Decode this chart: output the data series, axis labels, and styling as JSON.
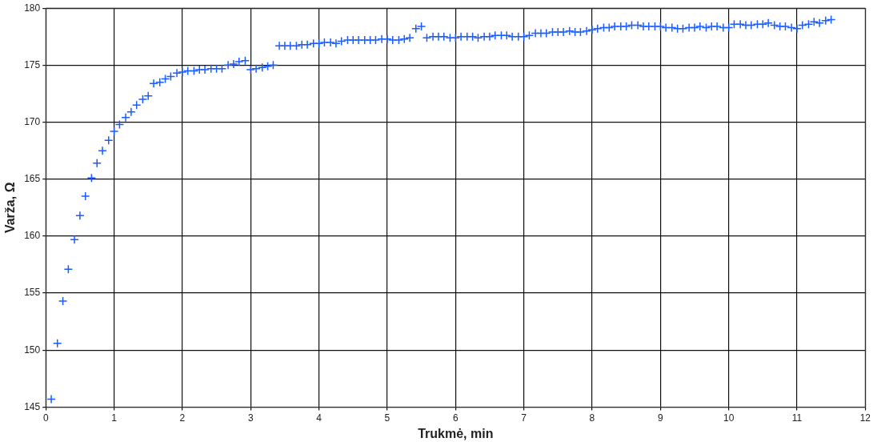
{
  "chart_data": {
    "type": "scatter",
    "xlabel": "Trukmė, min",
    "ylabel": "Varža, Ω",
    "xlim": [
      0,
      12
    ],
    "xticks": [
      0,
      1,
      2,
      3,
      4,
      5,
      6,
      7,
      8,
      9,
      10,
      11,
      12
    ],
    "ylim": [
      145,
      180
    ],
    "yticks": [
      145,
      150,
      155,
      160,
      165,
      170,
      175,
      180
    ],
    "grid": true,
    "marker": "cross",
    "legend": false,
    "series": [
      {
        "color": "#1a5cff",
        "x": [
          0.08,
          0.17,
          0.25,
          0.33,
          0.42,
          0.5,
          0.58,
          0.67,
          0.75,
          0.83,
          0.92,
          1.0,
          1.08,
          1.17,
          1.25,
          1.33,
          1.42,
          1.5,
          1.58,
          1.67,
          1.75,
          1.83,
          1.92,
          2.0,
          2.08,
          2.17,
          2.25,
          2.33,
          2.42,
          2.5,
          2.58,
          2.67,
          2.75,
          2.83,
          2.92,
          3.0,
          3.08,
          3.17,
          3.25,
          3.33,
          3.42,
          3.5,
          3.58,
          3.67,
          3.75,
          3.83,
          3.92,
          4.0,
          4.08,
          4.17,
          4.25,
          4.33,
          4.42,
          4.5,
          4.58,
          4.67,
          4.75,
          4.83,
          4.92,
          5.0,
          5.08,
          5.17,
          5.25,
          5.33,
          5.42,
          5.5,
          5.58,
          5.67,
          5.75,
          5.83,
          5.92,
          6.0,
          6.08,
          6.17,
          6.25,
          6.33,
          6.42,
          6.5,
          6.58,
          6.67,
          6.75,
          6.83,
          6.92,
          7.0,
          7.08,
          7.17,
          7.25,
          7.33,
          7.42,
          7.5,
          7.58,
          7.67,
          7.75,
          7.83,
          7.92,
          8.0,
          8.08,
          8.17,
          8.25,
          8.33,
          8.42,
          8.5,
          8.58,
          8.67,
          8.75,
          8.83,
          8.92,
          9.0,
          9.08,
          9.17,
          9.25,
          9.33,
          9.42,
          9.5,
          9.58,
          9.67,
          9.75,
          9.83,
          9.92,
          10.0,
          10.08,
          10.17,
          10.25,
          10.33,
          10.42,
          10.5,
          10.58,
          10.67,
          10.75,
          10.83,
          10.92,
          11.0,
          11.08,
          11.17,
          11.25,
          11.33,
          11.42,
          11.5
        ],
        "values": [
          145.7,
          150.6,
          154.3,
          157.1,
          159.7,
          161.8,
          163.5,
          165.1,
          166.4,
          167.5,
          168.4,
          169.2,
          169.8,
          170.4,
          170.9,
          171.5,
          172.0,
          172.3,
          173.4,
          173.5,
          173.8,
          174.0,
          174.3,
          174.4,
          174.5,
          174.5,
          174.6,
          174.6,
          174.7,
          174.7,
          174.7,
          175.0,
          175.1,
          175.3,
          175.4,
          174.6,
          174.7,
          174.8,
          174.9,
          175.0,
          176.7,
          176.7,
          176.7,
          176.7,
          176.8,
          176.8,
          176.9,
          176.9,
          177.0,
          177.0,
          176.9,
          177.1,
          177.2,
          177.2,
          177.2,
          177.2,
          177.2,
          177.2,
          177.3,
          177.3,
          177.2,
          177.2,
          177.3,
          177.4,
          178.2,
          178.4,
          177.4,
          177.5,
          177.5,
          177.5,
          177.4,
          177.4,
          177.5,
          177.5,
          177.5,
          177.4,
          177.5,
          177.5,
          177.6,
          177.6,
          177.6,
          177.5,
          177.5,
          177.5,
          177.6,
          177.8,
          177.8,
          177.8,
          177.9,
          177.9,
          177.9,
          178.0,
          177.9,
          177.9,
          178.0,
          178.1,
          178.2,
          178.3,
          178.3,
          178.4,
          178.4,
          178.4,
          178.5,
          178.5,
          178.4,
          178.4,
          178.4,
          178.4,
          178.3,
          178.3,
          178.2,
          178.2,
          178.3,
          178.3,
          178.4,
          178.3,
          178.4,
          178.4,
          178.3,
          178.3,
          178.6,
          178.6,
          178.5,
          178.5,
          178.6,
          178.6,
          178.7,
          178.5,
          178.4,
          178.4,
          178.3,
          178.2,
          178.5,
          178.6,
          178.8,
          178.7,
          178.9,
          179.0
        ]
      }
    ]
  }
}
